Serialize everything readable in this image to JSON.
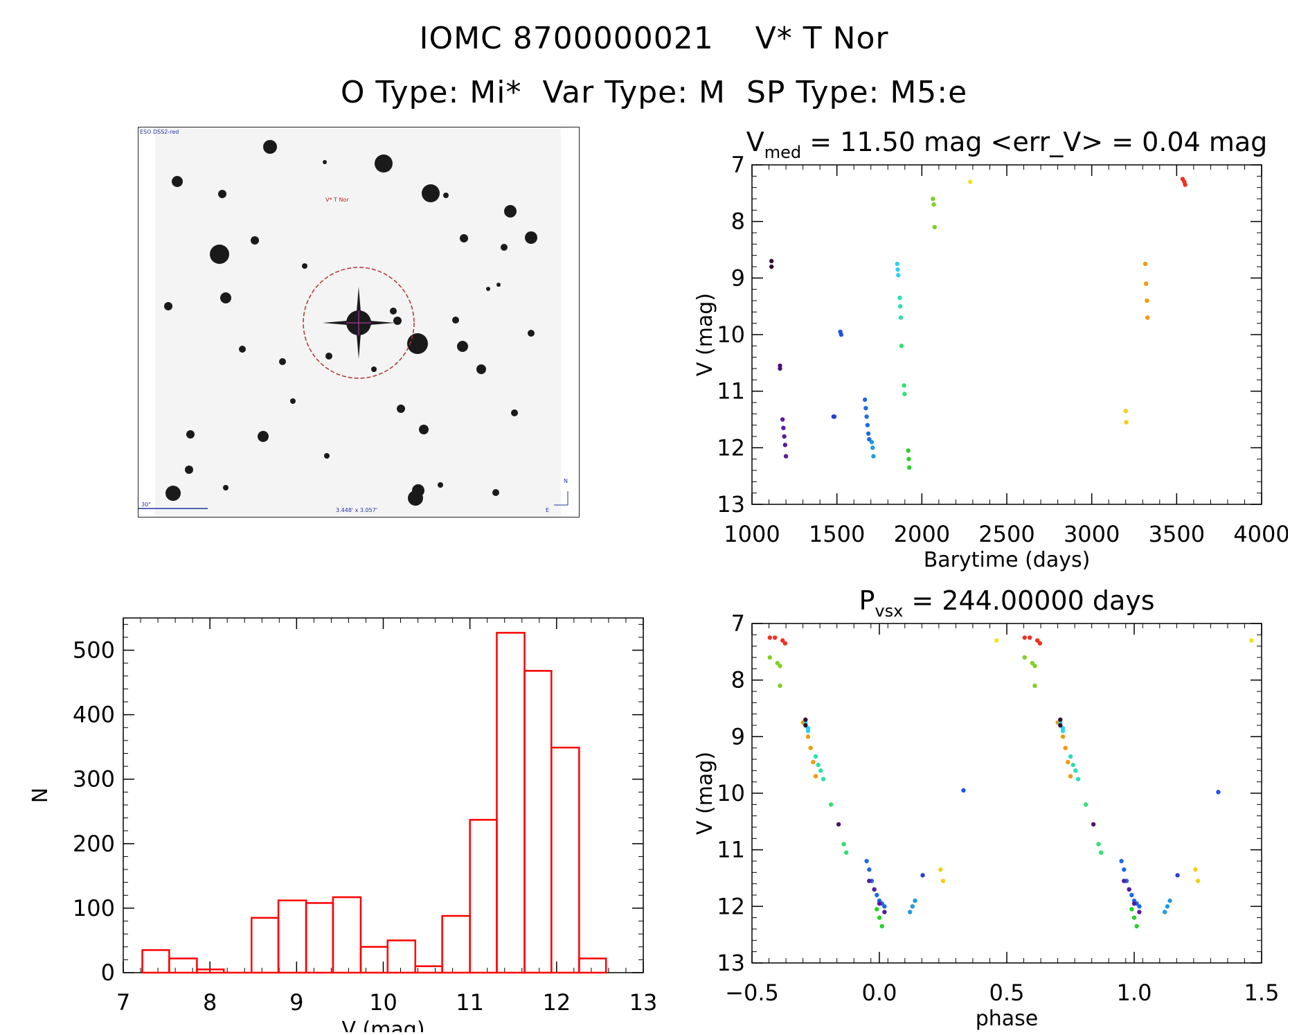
{
  "header": {
    "title_line1": "IOMC 8700000021    V* T Nor",
    "title_line2": "O Type: Mi*  Var Type: M  SP Type: M5:e"
  },
  "thumbnail": {
    "survey_label": "ESO DSS2-red",
    "object_label": "V* T Nor",
    "scale_label": "30\"",
    "fov_label": "3.448' x 3.057'",
    "compass_n": "N",
    "compass_e": "E"
  },
  "colors": {
    "histogram": "#ff0000",
    "circle": "#b03030",
    "axis": "#000000"
  },
  "chart_data": [
    {
      "id": "lightcurve",
      "type": "scatter",
      "title": "V_med = 11.50 mag <err_V> = 0.04 mag",
      "title_parts": {
        "v": "V",
        "sub": "med",
        "rest": " = 11.50 mag <err_V> = 0.04 mag"
      },
      "xlabel": "Barytime (days)",
      "ylabel": "V (mag)",
      "xlim": [
        1000,
        4000
      ],
      "ylim": [
        13,
        7
      ],
      "xticks": [
        1000,
        1500,
        2000,
        2500,
        3000,
        3500,
        4000
      ],
      "yticks": [
        7,
        8,
        9,
        10,
        11,
        12,
        13
      ],
      "groups": [
        {
          "color": "#301030",
          "x": [
            1115,
            1115
          ],
          "y": [
            8.7,
            8.8
          ]
        },
        {
          "color": "#501070",
          "x": [
            1165,
            1165
          ],
          "y": [
            10.55,
            10.6
          ]
        },
        {
          "color": "#5a1aa0",
          "x": [
            1180,
            1185,
            1190,
            1195,
            1200
          ],
          "y": [
            11.5,
            11.65,
            11.8,
            11.95,
            12.15
          ]
        },
        {
          "color": "#2a3cd8",
          "x": [
            1480,
            1485
          ],
          "y": [
            11.45,
            11.45
          ]
        },
        {
          "color": "#2050f0",
          "x": [
            1520,
            1525
          ],
          "y": [
            9.95,
            10.0
          ]
        },
        {
          "color": "#1c6ae8",
          "x": [
            1665,
            1670,
            1675,
            1680,
            1685,
            1690
          ],
          "y": [
            11.15,
            11.3,
            11.45,
            11.6,
            11.75,
            11.85
          ]
        },
        {
          "color": "#209ae0",
          "x": [
            1705,
            1710,
            1715
          ],
          "y": [
            11.9,
            12.0,
            12.15
          ]
        },
        {
          "color": "#30d0f0",
          "x": [
            1855,
            1858,
            1861
          ],
          "y": [
            8.75,
            8.85,
            8.95
          ]
        },
        {
          "color": "#28e0b0",
          "x": [
            1870,
            1873,
            1876
          ],
          "y": [
            9.35,
            9.5,
            9.7
          ]
        },
        {
          "color": "#30e070",
          "x": [
            1880,
            1895,
            1898
          ],
          "y": [
            10.2,
            10.9,
            11.05
          ]
        },
        {
          "color": "#28d028",
          "x": [
            1920,
            1923,
            1926
          ],
          "y": [
            12.05,
            12.2,
            12.35
          ]
        },
        {
          "color": "#80d020",
          "x": [
            2065,
            2070,
            2075
          ],
          "y": [
            7.6,
            7.7,
            8.1
          ]
        },
        {
          "color": "#f0e020",
          "x": [
            2285
          ],
          "y": [
            7.3
          ]
        },
        {
          "color": "#f0d010",
          "x": [
            3200,
            3203
          ],
          "y": [
            11.35,
            11.55
          ]
        },
        {
          "color": "#f09a10",
          "x": [
            3315,
            3320,
            3325,
            3328
          ],
          "y": [
            8.75,
            9.1,
            9.4,
            9.7
          ]
        },
        {
          "color": "#f03020",
          "x": [
            3535,
            3545,
            3550
          ],
          "y": [
            7.25,
            7.3,
            7.35
          ]
        }
      ]
    },
    {
      "id": "histogram",
      "type": "bar",
      "xlabel": "V (mag)",
      "ylabel": "N",
      "xlim": [
        7,
        13
      ],
      "ylim": [
        0,
        550
      ],
      "xticks": [
        7,
        8,
        9,
        10,
        11,
        12,
        13
      ],
      "yticks": [
        0,
        100,
        200,
        300,
        400,
        500
      ],
      "bin_edges": [
        7.22,
        7.53,
        7.85,
        8.16,
        8.48,
        8.79,
        9.11,
        9.42,
        9.74,
        10.05,
        10.37,
        10.68,
        11.0,
        11.31,
        11.63,
        11.94,
        12.26,
        12.57
      ],
      "values": [
        35,
        22,
        5,
        0,
        85,
        112,
        108,
        117,
        40,
        50,
        10,
        88,
        237,
        527,
        468,
        349,
        22
      ]
    },
    {
      "id": "phasecurve",
      "type": "scatter",
      "title": "P_vsx = 244.00000 days",
      "title_parts": {
        "v": "P",
        "sub": "vsx",
        "rest": " = 244.00000 days"
      },
      "xlabel": "phase",
      "ylabel": "V (mag)",
      "xlim": [
        -0.5,
        1.5
      ],
      "ylim": [
        13,
        7
      ],
      "xticks": [
        -0.5,
        0.0,
        0.5,
        1.0,
        1.5
      ],
      "xtick_labels": [
        "−0.5",
        "0.0",
        "0.5",
        "1.0",
        "1.5"
      ],
      "yticks": [
        7,
        8,
        9,
        10,
        11,
        12,
        13
      ],
      "groups": [
        {
          "color": "#f03020",
          "x": [
            -0.43,
            -0.41,
            -0.38,
            -0.37
          ],
          "y": [
            7.25,
            7.25,
            7.3,
            7.35
          ]
        },
        {
          "color": "#80d020",
          "x": [
            -0.43,
            -0.4,
            -0.39,
            -0.39
          ],
          "y": [
            7.6,
            7.7,
            7.75,
            8.1
          ]
        },
        {
          "color": "#f0e020",
          "x": [
            0.46,
            1.46
          ],
          "y": [
            7.3,
            7.3
          ]
        },
        {
          "color": "#f09a10",
          "x": [
            -0.3,
            -0.28,
            -0.27,
            -0.26,
            -0.25
          ],
          "y": [
            8.75,
            9.0,
            9.2,
            9.45,
            9.7
          ]
        },
        {
          "color": "#30d0f0",
          "x": [
            -0.29,
            -0.28,
            -0.28
          ],
          "y": [
            8.75,
            8.85,
            8.9
          ]
        },
        {
          "color": "#301030",
          "x": [
            -0.29,
            -0.29
          ],
          "y": [
            8.7,
            8.8
          ]
        },
        {
          "color": "#28e0b0",
          "x": [
            -0.25,
            -0.24,
            -0.23,
            -0.22
          ],
          "y": [
            9.35,
            9.5,
            9.6,
            9.75
          ]
        },
        {
          "color": "#30e070",
          "x": [
            -0.19,
            -0.14,
            -0.13
          ],
          "y": [
            10.2,
            10.9,
            11.05
          ]
        },
        {
          "color": "#501070",
          "x": [
            -0.16
          ],
          "y": [
            10.55
          ]
        },
        {
          "color": "#1c6ae8",
          "x": [
            -0.05,
            -0.04,
            -0.03,
            -0.02,
            -0.01,
            0.0,
            0.01,
            0.02
          ],
          "y": [
            11.2,
            11.35,
            11.55,
            11.7,
            11.8,
            11.9,
            11.95,
            12.0
          ]
        },
        {
          "color": "#5a1aa0",
          "x": [
            -0.04,
            -0.02,
            0.0,
            0.02
          ],
          "y": [
            11.55,
            11.7,
            11.95,
            12.1
          ]
        },
        {
          "color": "#28d028",
          "x": [
            -0.01,
            0.0,
            0.01
          ],
          "y": [
            12.05,
            12.2,
            12.35
          ]
        },
        {
          "color": "#209ae0",
          "x": [
            0.12,
            0.13,
            0.14
          ],
          "y": [
            12.1,
            12.0,
            11.9
          ]
        },
        {
          "color": "#2a3cd8",
          "x": [
            0.17,
            1.17
          ],
          "y": [
            11.45,
            11.45
          ]
        },
        {
          "color": "#f0d010",
          "x": [
            0.24,
            0.25
          ],
          "y": [
            11.35,
            11.55
          ]
        },
        {
          "color": "#2050f0",
          "x": [
            0.33,
            1.33
          ],
          "y": [
            9.95,
            9.98
          ]
        },
        {
          "color": "#f03020",
          "x": [
            0.57,
            0.59,
            0.62,
            0.63
          ],
          "y": [
            7.25,
            7.25,
            7.3,
            7.35
          ]
        },
        {
          "color": "#80d020",
          "x": [
            0.57,
            0.6,
            0.61,
            0.61
          ],
          "y": [
            7.6,
            7.7,
            7.75,
            8.1
          ]
        },
        {
          "color": "#f09a10",
          "x": [
            0.7,
            0.72,
            0.73,
            0.74,
            0.75
          ],
          "y": [
            8.75,
            9.0,
            9.2,
            9.45,
            9.7
          ]
        },
        {
          "color": "#30d0f0",
          "x": [
            0.71,
            0.72,
            0.72
          ],
          "y": [
            8.75,
            8.85,
            8.9
          ]
        },
        {
          "color": "#301030",
          "x": [
            0.71,
            0.71
          ],
          "y": [
            8.7,
            8.8
          ]
        },
        {
          "color": "#28e0b0",
          "x": [
            0.75,
            0.76,
            0.77,
            0.78
          ],
          "y": [
            9.35,
            9.5,
            9.6,
            9.75
          ]
        },
        {
          "color": "#30e070",
          "x": [
            0.81,
            0.86,
            0.87
          ],
          "y": [
            10.2,
            10.9,
            11.05
          ]
        },
        {
          "color": "#501070",
          "x": [
            0.84
          ],
          "y": [
            10.55
          ]
        },
        {
          "color": "#1c6ae8",
          "x": [
            0.95,
            0.96,
            0.97,
            0.98,
            0.99,
            1.0,
            1.01,
            1.02
          ],
          "y": [
            11.2,
            11.35,
            11.55,
            11.7,
            11.8,
            11.9,
            11.95,
            12.0
          ]
        },
        {
          "color": "#5a1aa0",
          "x": [
            0.96,
            0.98,
            1.0,
            1.02
          ],
          "y": [
            11.55,
            11.7,
            11.95,
            12.1
          ]
        },
        {
          "color": "#28d028",
          "x": [
            0.99,
            1.0,
            1.01
          ],
          "y": [
            12.05,
            12.2,
            12.35
          ]
        },
        {
          "color": "#209ae0",
          "x": [
            1.12,
            1.13,
            1.14
          ],
          "y": [
            12.1,
            12.0,
            11.9
          ]
        },
        {
          "color": "#f0d010",
          "x": [
            1.24,
            1.25
          ],
          "y": [
            11.35,
            11.55
          ]
        }
      ]
    }
  ]
}
